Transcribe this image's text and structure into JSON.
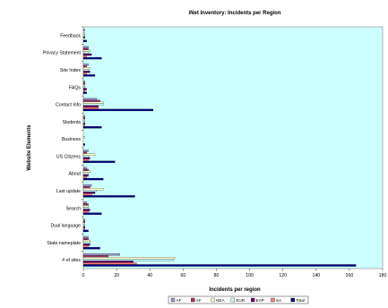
{
  "chart_data": {
    "type": "bar",
    "orientation": "horizontal",
    "title": "iNet Inventory: Incidents per Region",
    "xlabel": "Incidents per region",
    "ylabel": "Website Elements",
    "xlim": [
      0,
      180
    ],
    "xticks": [
      "0",
      "20",
      "40",
      "60",
      "80",
      "100",
      "120",
      "140",
      "160",
      "180"
    ],
    "categories": [
      "Feedback",
      "Privacy Statement",
      "Site Index",
      "FAQs",
      "Contact Info",
      "Students",
      "Business",
      "US Citizens",
      "About",
      "Last update",
      "Search",
      "Dual language",
      "State nameplate",
      "# of sites"
    ],
    "series": [
      {
        "name": "AF",
        "color": "#9999cc",
        "values": [
          1,
          3,
          3,
          1,
          8,
          1,
          0,
          3,
          2,
          5,
          2,
          1,
          3,
          22
        ]
      },
      {
        "name": "AF",
        "color": "#993366",
        "values": [
          0,
          3,
          2,
          1,
          10,
          1,
          0,
          2,
          3,
          4,
          3,
          1,
          3,
          15
        ]
      },
      {
        "name": "NEA",
        "color": "#ffffcc",
        "values": [
          1,
          4,
          4,
          1,
          12,
          1,
          1,
          7,
          4,
          12,
          3,
          1,
          4,
          55
        ]
      },
      {
        "name": "EUR",
        "color": "#ccffff",
        "values": [
          1,
          3,
          3,
          1,
          12,
          1,
          0,
          3,
          3,
          8,
          3,
          1,
          4,
          54
        ]
      },
      {
        "name": "EAP",
        "color": "#660066",
        "values": [
          1,
          5,
          4,
          2,
          9,
          1,
          0,
          4,
          3,
          7,
          4,
          1,
          4,
          30
        ]
      },
      {
        "name": "SA",
        "color": "#ff8080",
        "values": [
          0,
          2,
          2,
          1,
          9,
          1,
          0,
          3,
          2,
          5,
          3,
          1,
          3,
          32
        ]
      },
      {
        "name": "Total",
        "color": "#000080",
        "values": [
          2,
          11,
          7,
          2,
          42,
          11,
          1,
          19,
          12,
          31,
          11,
          3,
          10,
          164
        ]
      }
    ],
    "plot_background": "#ccffff",
    "grid": false,
    "legend_position": "bottom"
  }
}
